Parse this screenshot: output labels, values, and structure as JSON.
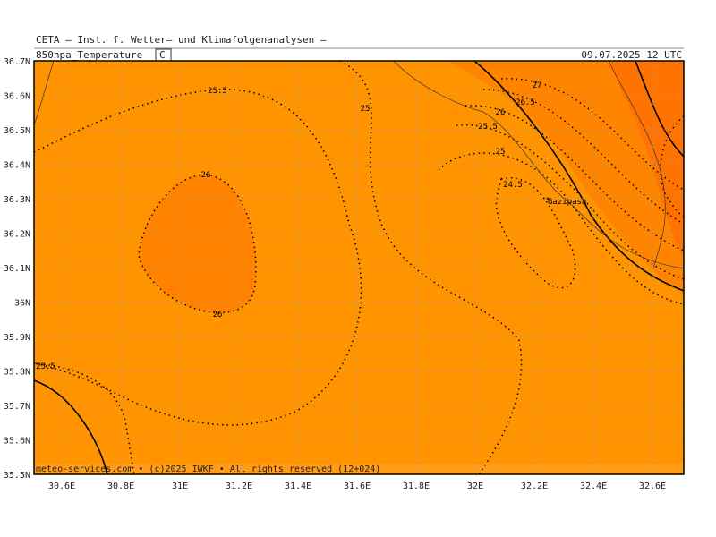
{
  "header": {
    "line1": "CETA — Inst. f. Wetter— und Klimafolgenanalysen —",
    "field": "850hpa_Temperature",
    "unit": "C",
    "datetime": "09.07.2025 12 UTC"
  },
  "map": {
    "lat_labels": [
      "36.7N",
      "36.6N",
      "36.5N",
      "36.4N",
      "36.3N",
      "36.2N",
      "36.1N",
      "36N",
      "35.9N",
      "35.8N",
      "35.7N",
      "35.6N",
      "35.5N"
    ],
    "lon_labels": [
      "30.6E",
      "30.8E",
      "31E",
      "31.2E",
      "31.4E",
      "31.6E",
      "31.8E",
      "32E",
      "32.2E",
      "32.4E",
      "32.6E"
    ],
    "contour_labels": [
      "25.5",
      "25",
      "26",
      "26",
      "25.5",
      "27",
      "26.5",
      "26",
      "25.5",
      "25",
      "24.5"
    ],
    "places": [
      "Gazipasa"
    ]
  },
  "footer": "meteo-services.com • (c)2025 IWKF • All rights reserved (12+024)"
}
